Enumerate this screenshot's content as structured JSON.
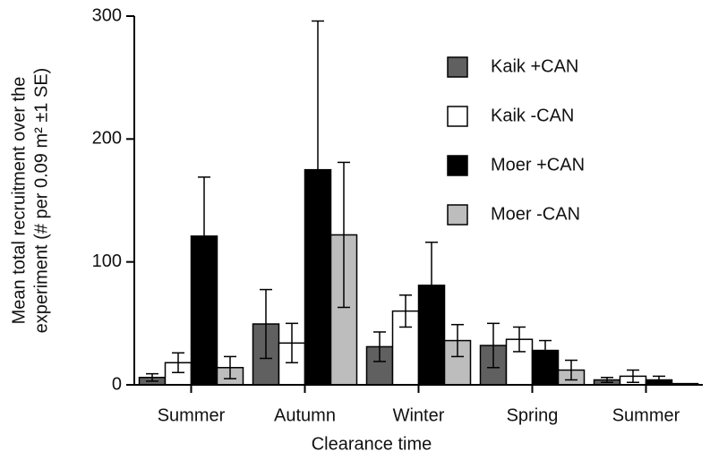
{
  "chart_data": {
    "type": "bar",
    "x_label": "Clearance time",
    "y_label": [
      "Mean total recruitment over the",
      "experiment (# per 0.09 m² ±1 SE)"
    ],
    "categories": [
      "Summer",
      "Autumn",
      "Winter",
      "Spring",
      "Summer"
    ],
    "series": [
      {
        "name": "Kaik +CAN",
        "color": "#606060",
        "values": [
          6,
          49.5,
          31,
          32,
          4
        ],
        "errors": [
          3,
          28,
          12,
          18,
          2
        ]
      },
      {
        "name": "Kaik -CAN",
        "color": "#ffffff",
        "values": [
          18,
          34,
          60,
          37,
          7
        ],
        "errors": [
          8,
          16,
          13,
          10,
          5
        ]
      },
      {
        "name": "Moer +CAN",
        "color": "#000000",
        "values": [
          121,
          175,
          81,
          28,
          4
        ],
        "errors": [
          48,
          121,
          35,
          8,
          3
        ]
      },
      {
        "name": "Moer -CAN",
        "color": "#bdbdbd",
        "values": [
          14,
          122,
          36,
          12,
          1
        ],
        "errors": [
          9,
          59,
          13,
          8,
          0
        ]
      }
    ],
    "ylim": [
      0,
      300
    ],
    "yticks": [
      0,
      100,
      200,
      300
    ],
    "legend": "upper right"
  }
}
